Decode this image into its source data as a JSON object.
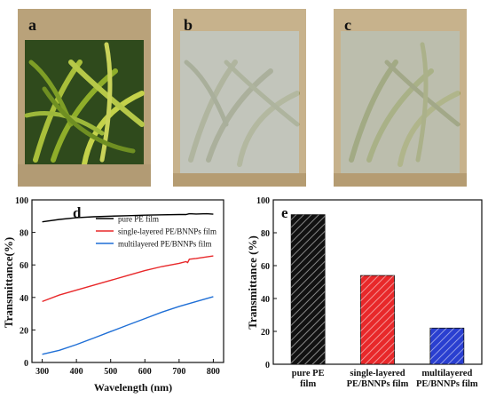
{
  "photos": [
    {
      "label": "a",
      "description_icon": "plant-photo-clear"
    },
    {
      "label": "b",
      "description_icon": "plant-photo-hazy"
    },
    {
      "label": "c",
      "description_icon": "plant-photo-hazy"
    }
  ],
  "colors": {
    "pure": "#000000",
    "single": "#e8282a",
    "multi": "#1f6fd6",
    "sand": "#b9a27a"
  },
  "chart_data": [
    {
      "type": "line",
      "panel_label": "d",
      "xlabel": "Wavelength (nm)",
      "ylabel": "Transmittance(%)",
      "xlim": [
        270,
        830
      ],
      "ylim": [
        0,
        100
      ],
      "xticks": [
        300,
        400,
        500,
        600,
        700,
        800
      ],
      "yticks": [
        0,
        20,
        40,
        60,
        80,
        100
      ],
      "legend_position": "top-right",
      "series": [
        {
          "name": "pure PE film",
          "color": "#000000",
          "x": [
            300,
            350,
            400,
            450,
            500,
            550,
            600,
            650,
            700,
            720,
            730,
            750,
            780,
            800
          ],
          "y": [
            86.5,
            88.0,
            89.0,
            89.6,
            90.0,
            90.3,
            90.6,
            90.8,
            91.0,
            91.0,
            91.5,
            91.3,
            91.5,
            91.2
          ]
        },
        {
          "name": "single-layered PE/BNNPs film",
          "color": "#e8282a",
          "x": [
            300,
            350,
            400,
            450,
            500,
            550,
            600,
            650,
            700,
            720,
            725,
            730,
            750,
            800
          ],
          "y": [
            37.5,
            41.5,
            44.5,
            47.5,
            50.5,
            53.5,
            56.5,
            59.0,
            61.0,
            62.0,
            61.5,
            63.5,
            64.0,
            65.5
          ]
        },
        {
          "name": "multilayered PE/BNNPs film",
          "color": "#1f6fd6",
          "x": [
            300,
            350,
            400,
            450,
            500,
            550,
            600,
            650,
            700,
            750,
            800
          ],
          "y": [
            5.0,
            7.5,
            11.0,
            15.0,
            19.0,
            23.0,
            27.0,
            31.0,
            34.5,
            37.5,
            40.5
          ]
        }
      ]
    },
    {
      "type": "bar",
      "panel_label": "e",
      "ylabel": "Transmittance (%)",
      "ylim": [
        0,
        100
      ],
      "yticks": [
        0,
        20,
        40,
        60,
        80,
        100
      ],
      "categories": [
        [
          "pure PE",
          "film"
        ],
        [
          "single-layered",
          "PE/BNNPs film"
        ],
        [
          "multilayered",
          "PE/BNNPs film"
        ]
      ],
      "values": [
        91,
        54,
        22
      ],
      "colors": [
        "#111111",
        "#e8282a",
        "#2a3fd0"
      ],
      "hatch": "diagonal"
    }
  ]
}
